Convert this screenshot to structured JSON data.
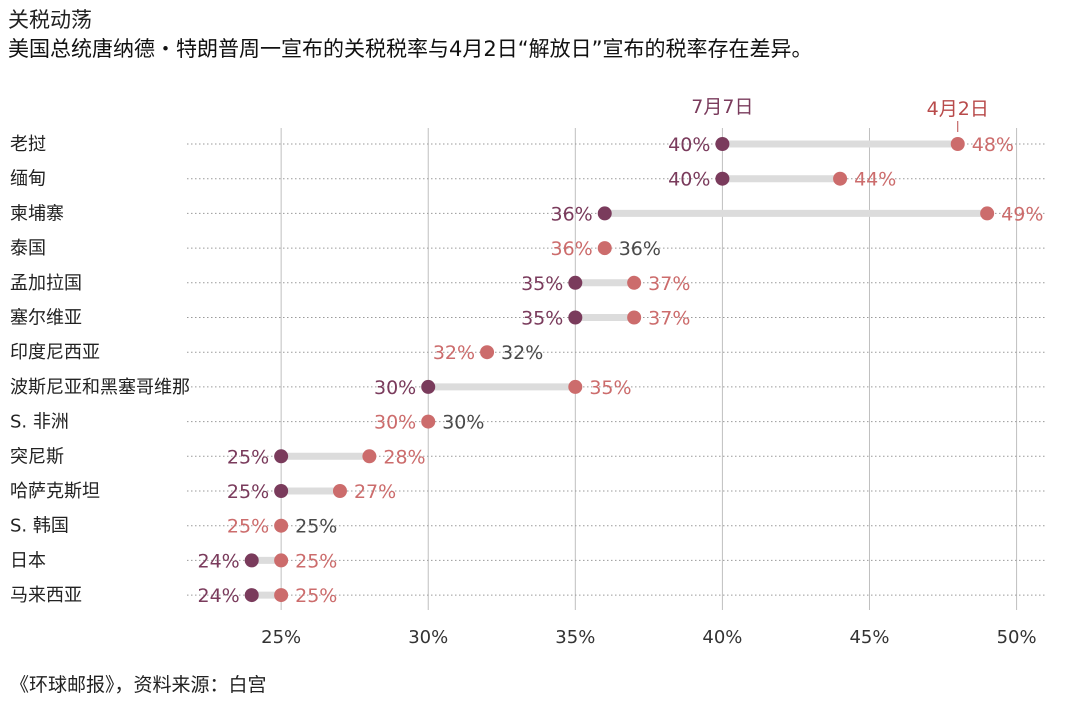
{
  "title": "关税动荡",
  "subtitle": "美国总统唐纳德・特朗普周一宣布的关税税率与4月2日“解放日”宣布的税率存在差异。",
  "source": "《环球邮报》，资料来源：白宫",
  "colors": {
    "july": "#7a3b5c",
    "april": "#cc6c6c",
    "connector": "#dcdcdc",
    "grid": "#bfbfbf",
    "hdr_april": "#b84a4a",
    "hdr_july": "#7a3b5c"
  },
  "chart_data": {
    "type": "dot",
    "series": [
      {
        "name": "7月7日",
        "values": [
          40,
          40,
          36,
          36,
          35,
          35,
          32,
          30,
          30,
          25,
          25,
          25,
          24,
          24
        ]
      },
      {
        "name": "4月2日",
        "values": [
          48,
          44,
          49,
          36,
          37,
          37,
          32,
          35,
          30,
          28,
          27,
          25,
          25,
          25
        ]
      }
    ],
    "categories": [
      "老挝",
      "缅甸",
      "柬埔寨",
      "泰国",
      "孟加拉国",
      "塞尔维亚",
      "印度尼西亚",
      "波斯尼亚和黑塞哥维那",
      "S. 非洲",
      "突尼斯",
      "哈萨克斯坦",
      "S. 韩国",
      "日本",
      "马来西亚"
    ],
    "x_ticks": [
      "25%",
      "30%",
      "35%",
      "40%",
      "45%",
      "50%"
    ],
    "x_tick_values": [
      25,
      30,
      35,
      40,
      45,
      50
    ],
    "xlim": [
      21.8,
      51
    ],
    "value_suffix": "%",
    "grid": true
  }
}
